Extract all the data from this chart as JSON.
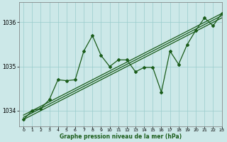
{
  "xlabel": "Graphe pression niveau de la mer (hPa)",
  "xlim": [
    -0.5,
    23
  ],
  "ylim": [
    1033.65,
    1036.45
  ],
  "yticks": [
    1034,
    1035,
    1036
  ],
  "xticks": [
    0,
    1,
    2,
    3,
    4,
    5,
    6,
    7,
    8,
    9,
    10,
    11,
    12,
    13,
    14,
    15,
    16,
    17,
    18,
    19,
    20,
    21,
    22,
    23
  ],
  "background_color": "#cce8e8",
  "grid_color": "#99cccc",
  "line_color": "#1a5c1a",
  "linear_lines": [
    [
      [
        0,
        23
      ],
      [
        1033.8,
        1036.1
      ]
    ],
    [
      [
        0,
        23
      ],
      [
        1033.85,
        1036.15
      ]
    ],
    [
      [
        0,
        23
      ],
      [
        1033.9,
        1036.2
      ]
    ]
  ],
  "zigzag_x": [
    0,
    1,
    2,
    3,
    4,
    5,
    6,
    7,
    8,
    9,
    10,
    11,
    12,
    13,
    14,
    15,
    16,
    17,
    18,
    19,
    20,
    21,
    22,
    23
  ],
  "zigzag_y": [
    1033.8,
    1034.0,
    1034.05,
    1034.25,
    1034.7,
    1034.68,
    1034.7,
    1035.35,
    1035.7,
    1035.25,
    1035.0,
    1035.15,
    1035.15,
    1034.88,
    1034.98,
    1034.98,
    1034.42,
    1035.35,
    1035.05,
    1035.5,
    1035.82,
    1036.1,
    1035.92,
    1036.2
  ]
}
